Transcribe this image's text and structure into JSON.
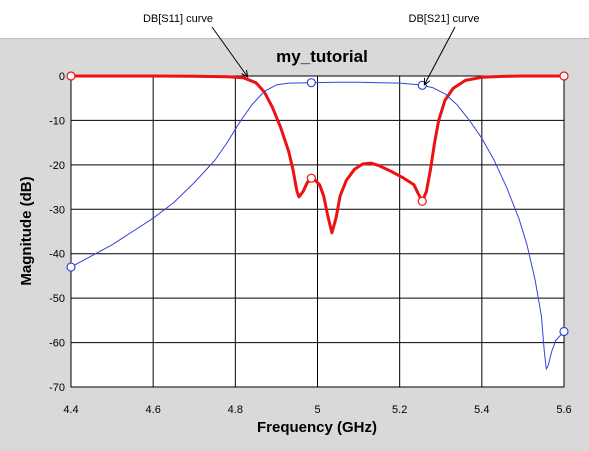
{
  "chart_data": {
    "type": "line",
    "title": "my_tutorial",
    "xlabel": "Frequency (GHz)",
    "ylabel": "Magnitude (dB)",
    "xlim": [
      4.4,
      5.6
    ],
    "ylim": [
      -70,
      0
    ],
    "grid": true,
    "x_ticks": [
      "4.4",
      "4.6",
      "4.8",
      "5",
      "5.2",
      "5.4",
      "5.6"
    ],
    "y_ticks": [
      "0",
      "-10",
      "-20",
      "-30",
      "-40",
      "-50",
      "-60",
      "-70"
    ],
    "annotations": [
      {
        "text": "DB[S11] curve",
        "target": [
          4.83,
          -0.2
        ]
      },
      {
        "text": "DB[S21] curve",
        "target": [
          5.26,
          -2.0
        ]
      }
    ],
    "series": [
      {
        "name": "DB[S11]",
        "color": "#ee1111",
        "points": [
          [
            4.4,
            0.0
          ],
          [
            4.6,
            0.0
          ],
          [
            4.7,
            -0.05
          ],
          [
            4.78,
            -0.15
          ],
          [
            4.82,
            -0.4
          ],
          [
            4.85,
            -1.5
          ],
          [
            4.87,
            -3.5
          ],
          [
            4.89,
            -7
          ],
          [
            4.91,
            -11.5
          ],
          [
            4.93,
            -17
          ],
          [
            4.94,
            -21
          ],
          [
            4.95,
            -26
          ],
          [
            4.955,
            -27.2
          ],
          [
            4.965,
            -26
          ],
          [
            4.975,
            -24
          ],
          [
            4.985,
            -23
          ],
          [
            4.995,
            -23.5
          ],
          [
            5.005,
            -24.5
          ],
          [
            5.015,
            -27
          ],
          [
            5.025,
            -31.5
          ],
          [
            5.035,
            -35.3
          ],
          [
            5.045,
            -32
          ],
          [
            5.055,
            -27
          ],
          [
            5.07,
            -23.5
          ],
          [
            5.09,
            -21
          ],
          [
            5.11,
            -19.8
          ],
          [
            5.13,
            -19.6
          ],
          [
            5.15,
            -20.2
          ],
          [
            5.18,
            -21.5
          ],
          [
            5.21,
            -23
          ],
          [
            5.235,
            -24.5
          ],
          [
            5.245,
            -26.5
          ],
          [
            5.255,
            -28.2
          ],
          [
            5.265,
            -26
          ],
          [
            5.275,
            -21
          ],
          [
            5.285,
            -15
          ],
          [
            5.295,
            -10
          ],
          [
            5.31,
            -5.5
          ],
          [
            5.33,
            -2.8
          ],
          [
            5.36,
            -1
          ],
          [
            5.4,
            -0.3
          ],
          [
            5.45,
            -0.1
          ],
          [
            5.5,
            0.0
          ],
          [
            5.6,
            0.0
          ]
        ],
        "markers": [
          [
            4.4,
            0.0
          ],
          [
            4.985,
            -23.0
          ],
          [
            5.255,
            -28.2
          ],
          [
            5.6,
            0.0
          ]
        ]
      },
      {
        "name": "DB[S21]",
        "color": "#3344dd",
        "points": [
          [
            4.4,
            -43
          ],
          [
            4.45,
            -40.5
          ],
          [
            4.5,
            -38
          ],
          [
            4.55,
            -35
          ],
          [
            4.6,
            -32
          ],
          [
            4.65,
            -28.5
          ],
          [
            4.7,
            -24
          ],
          [
            4.75,
            -19
          ],
          [
            4.78,
            -15
          ],
          [
            4.81,
            -10.5
          ],
          [
            4.84,
            -6.5
          ],
          [
            4.87,
            -3.5
          ],
          [
            4.9,
            -2.0
          ],
          [
            4.93,
            -1.6
          ],
          [
            4.985,
            -1.5
          ],
          [
            5.05,
            -1.4
          ],
          [
            5.1,
            -1.4
          ],
          [
            5.15,
            -1.5
          ],
          [
            5.2,
            -1.6
          ],
          [
            5.25,
            -2.0
          ],
          [
            5.28,
            -2.6
          ],
          [
            5.31,
            -4.0
          ],
          [
            5.34,
            -6.5
          ],
          [
            5.37,
            -10
          ],
          [
            5.4,
            -14
          ],
          [
            5.43,
            -19
          ],
          [
            5.46,
            -25
          ],
          [
            5.49,
            -32
          ],
          [
            5.51,
            -38
          ],
          [
            5.53,
            -46
          ],
          [
            5.545,
            -54
          ],
          [
            5.552,
            -62
          ],
          [
            5.557,
            -66
          ],
          [
            5.562,
            -65
          ],
          [
            5.57,
            -62
          ],
          [
            5.58,
            -59.5
          ],
          [
            5.6,
            -57.5
          ]
        ],
        "markers": [
          [
            4.4,
            -43.0
          ],
          [
            4.985,
            -1.5
          ],
          [
            5.255,
            -2.1
          ],
          [
            5.6,
            -57.5
          ]
        ]
      }
    ]
  }
}
